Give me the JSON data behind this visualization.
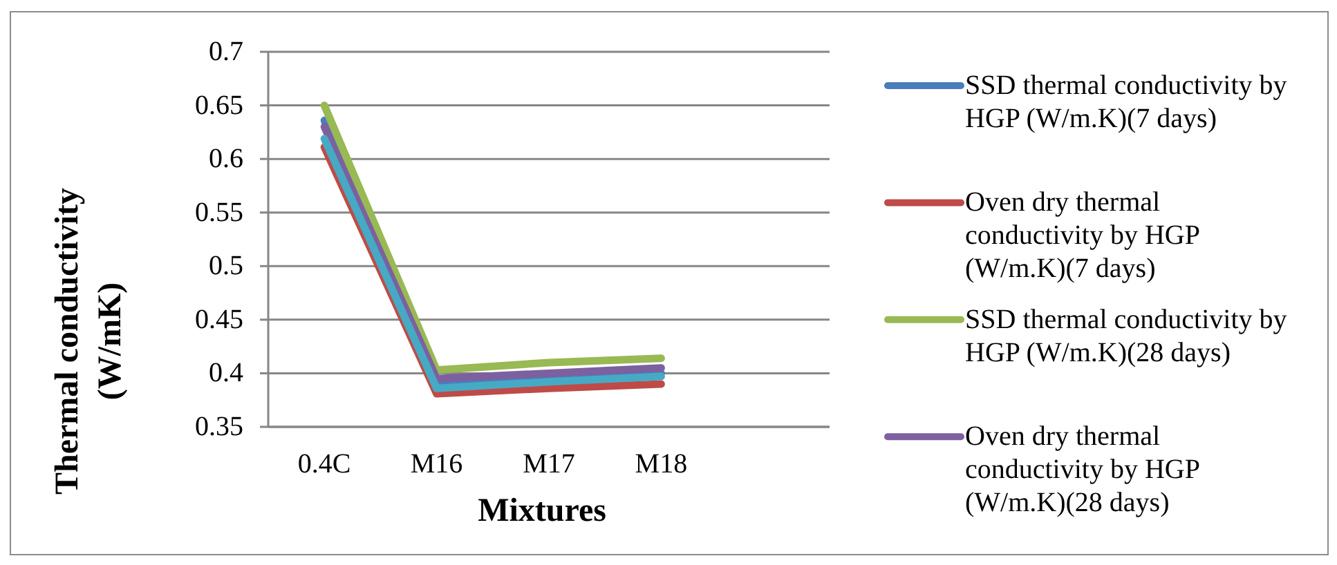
{
  "chart_data": {
    "type": "line",
    "xlabel": "Mixtures",
    "ylabel": "Thermal conductivity (W/mK)",
    "categories": [
      "0.4C",
      "M16",
      "M17",
      "M18",
      null
    ],
    "series": [
      {
        "name": "SSD thermal conductivity by HGP (W/m.K)(7 days)",
        "color": "#4a7ebb",
        "values": [
          0.636,
          0.39,
          0.395,
          0.4,
          null
        ]
      },
      {
        "name": "Oven dry thermal conductivity by HGP (W/m.K)(7 days)",
        "color": "#be4b48",
        "values": [
          0.611,
          0.381,
          0.386,
          0.39,
          null
        ]
      },
      {
        "name": "SSD thermal conductivity by HGP (W/m.K)(28 days)",
        "color": "#98b954",
        "values": [
          0.65,
          0.403,
          0.41,
          0.414,
          null
        ]
      },
      {
        "name": "Oven dry thermal conductivity by HGP (W/m.K)(28 days)",
        "color": "#7d60a0",
        "values": [
          0.63,
          0.395,
          0.4,
          0.405,
          null
        ]
      },
      {
        "color": "#46aac5",
        "values": [
          0.619,
          0.386,
          0.392,
          0.397,
          null
        ]
      }
    ],
    "ylim": [
      0.35,
      0.7
    ],
    "yticks": [
      0.35,
      0.4,
      0.45,
      0.5,
      0.55,
      0.6,
      0.65,
      0.7
    ],
    "grid": "y",
    "legend": "right"
  }
}
